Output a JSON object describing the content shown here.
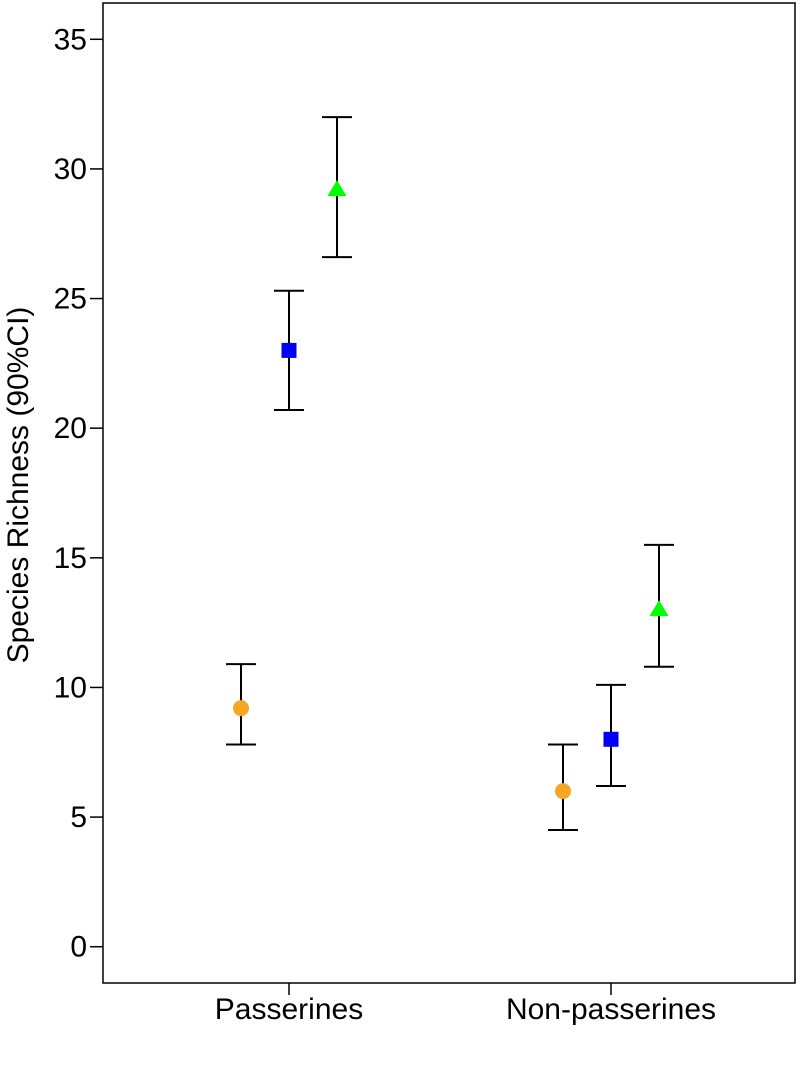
{
  "chart_data": {
    "type": "scatter",
    "title": "",
    "xlabel": "",
    "ylabel": "Species Richness (90%CI)",
    "categories": [
      "Passerines",
      "Non-passerines"
    ],
    "ylim": [
      -1.4,
      36.4
    ],
    "yticks": [
      "0",
      "5",
      "10",
      "15",
      "20",
      "25",
      "30",
      "35"
    ],
    "grid": false,
    "legend": "none",
    "series": [
      {
        "marker": "circle",
        "color": "#f5a623",
        "values": [
          9.2,
          6.0
        ],
        "lower": [
          7.8,
          4.5
        ],
        "upper": [
          10.9,
          7.8
        ]
      },
      {
        "marker": "square",
        "color": "#0000ff",
        "values": [
          23.0,
          8.0
        ],
        "lower": [
          20.7,
          6.2
        ],
        "upper": [
          25.3,
          10.1
        ]
      },
      {
        "marker": "triangle",
        "color": "#00ff00",
        "values": [
          29.2,
          13.0
        ],
        "lower": [
          26.6,
          10.8
        ],
        "upper": [
          32.0,
          15.5
        ]
      }
    ]
  }
}
